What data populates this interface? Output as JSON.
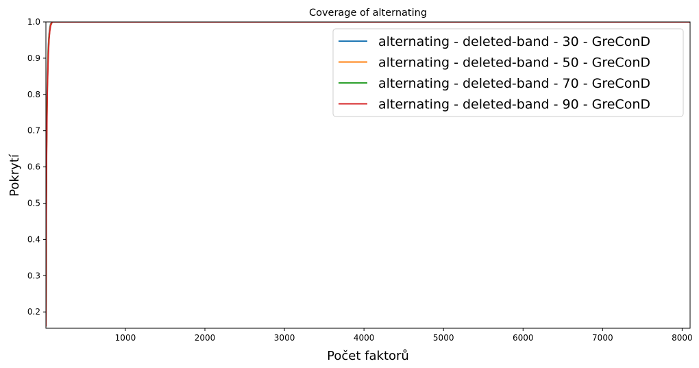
{
  "chart_data": {
    "type": "line",
    "title": "Coverage of alternating",
    "xlabel": "Počet faktorů",
    "ylabel": "Pokrytí",
    "xlim": [
      1,
      8100
    ],
    "ylim": [
      0.155,
      1.0
    ],
    "xticks": [
      1000,
      2000,
      3000,
      4000,
      5000,
      6000,
      7000,
      8000
    ],
    "yticks": [
      0.2,
      0.3,
      0.4,
      0.5,
      0.6,
      0.7,
      0.8,
      0.9,
      1.0
    ],
    "grid": false,
    "legend_position": "top-right",
    "series": [
      {
        "name": "alternating - deleted-band - 30 - GreConD",
        "color": "#1f77b4",
        "x": [
          1,
          5,
          10,
          15,
          20,
          30,
          40,
          50,
          60,
          80,
          100,
          8100
        ],
        "y": [
          0.16,
          0.5,
          0.68,
          0.79,
          0.86,
          0.93,
          0.965,
          0.985,
          0.995,
          1.0,
          1.0,
          1.0
        ]
      },
      {
        "name": "alternating - deleted-band - 50 - GreConD",
        "color": "#ff7f0e",
        "x": [
          1,
          5,
          10,
          15,
          20,
          30,
          40,
          50,
          60,
          80,
          100,
          8100
        ],
        "y": [
          0.16,
          0.48,
          0.66,
          0.77,
          0.84,
          0.92,
          0.96,
          0.98,
          0.993,
          1.0,
          1.0,
          1.0
        ]
      },
      {
        "name": "alternating - deleted-band - 70 - GreConD",
        "color": "#2ca02c",
        "x": [
          1,
          5,
          10,
          15,
          20,
          30,
          40,
          50,
          60,
          80,
          100,
          8100
        ],
        "y": [
          0.16,
          0.47,
          0.65,
          0.76,
          0.83,
          0.91,
          0.955,
          0.978,
          0.99,
          1.0,
          1.0,
          1.0
        ]
      },
      {
        "name": "alternating - deleted-band - 90 - GreConD",
        "color": "#d62728",
        "x": [
          1,
          5,
          10,
          15,
          20,
          30,
          40,
          50,
          60,
          80,
          100,
          8100
        ],
        "y": [
          0.16,
          0.45,
          0.63,
          0.74,
          0.82,
          0.9,
          0.95,
          0.975,
          0.99,
          1.0,
          1.0,
          1.0
        ]
      }
    ]
  }
}
